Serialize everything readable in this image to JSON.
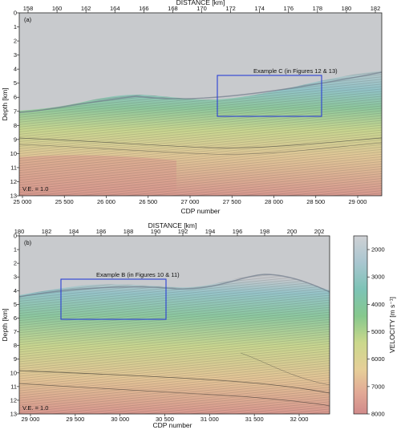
{
  "panel_a": {
    "label": "(a)",
    "top_axis_title": "DISTANCE [km]",
    "top_ticks": [
      "158",
      "160",
      "162",
      "164",
      "166",
      "168",
      "170",
      "172",
      "174",
      "176",
      "178",
      "180",
      "182"
    ],
    "depth_ticks": [
      "0",
      "1",
      "2",
      "3",
      "4",
      "5",
      "6",
      "7",
      "8",
      "9",
      "10",
      "11",
      "12",
      "13"
    ],
    "depth_label": "Depth [km]",
    "cdp_ticks": [
      "25 000",
      "25 500",
      "26 000",
      "26 500",
      "27 000",
      "27 500",
      "28 000",
      "28 500",
      "29 000"
    ],
    "cdp_label": "CDP number",
    "ve_label": "V.E. = 1.0",
    "box_label": "Example C (in Figures 12 & 13)"
  },
  "panel_b": {
    "label": "(b)",
    "top_axis_title": "DISTANCE [km]",
    "top_ticks": [
      "180",
      "182",
      "184",
      "186",
      "188",
      "190",
      "192",
      "194",
      "196",
      "198",
      "200",
      "202"
    ],
    "depth_ticks": [
      "0",
      "1",
      "2",
      "3",
      "4",
      "5",
      "6",
      "7",
      "8",
      "9",
      "10",
      "11",
      "12",
      "13"
    ],
    "depth_label": "Depth [km]",
    "cdp_ticks": [
      "29 000",
      "29 500",
      "30 000",
      "30 500",
      "31 000",
      "31 500",
      "32 000"
    ],
    "cdp_label": "CDP number",
    "ve_label": "V.E. = 1.0",
    "box_label": "Example B (in Figures 10 & 11)"
  },
  "colorbar": {
    "title": "VELOCITY [m s⁻¹]",
    "ticks": [
      "2000",
      "3000",
      "4000",
      "5000",
      "6000",
      "7000",
      "8000"
    ],
    "colors": [
      "#c9cbce",
      "#8fc2c9",
      "#7cc59a",
      "#b9d488",
      "#e1d99a",
      "#e6b596",
      "#d5938e"
    ]
  }
}
